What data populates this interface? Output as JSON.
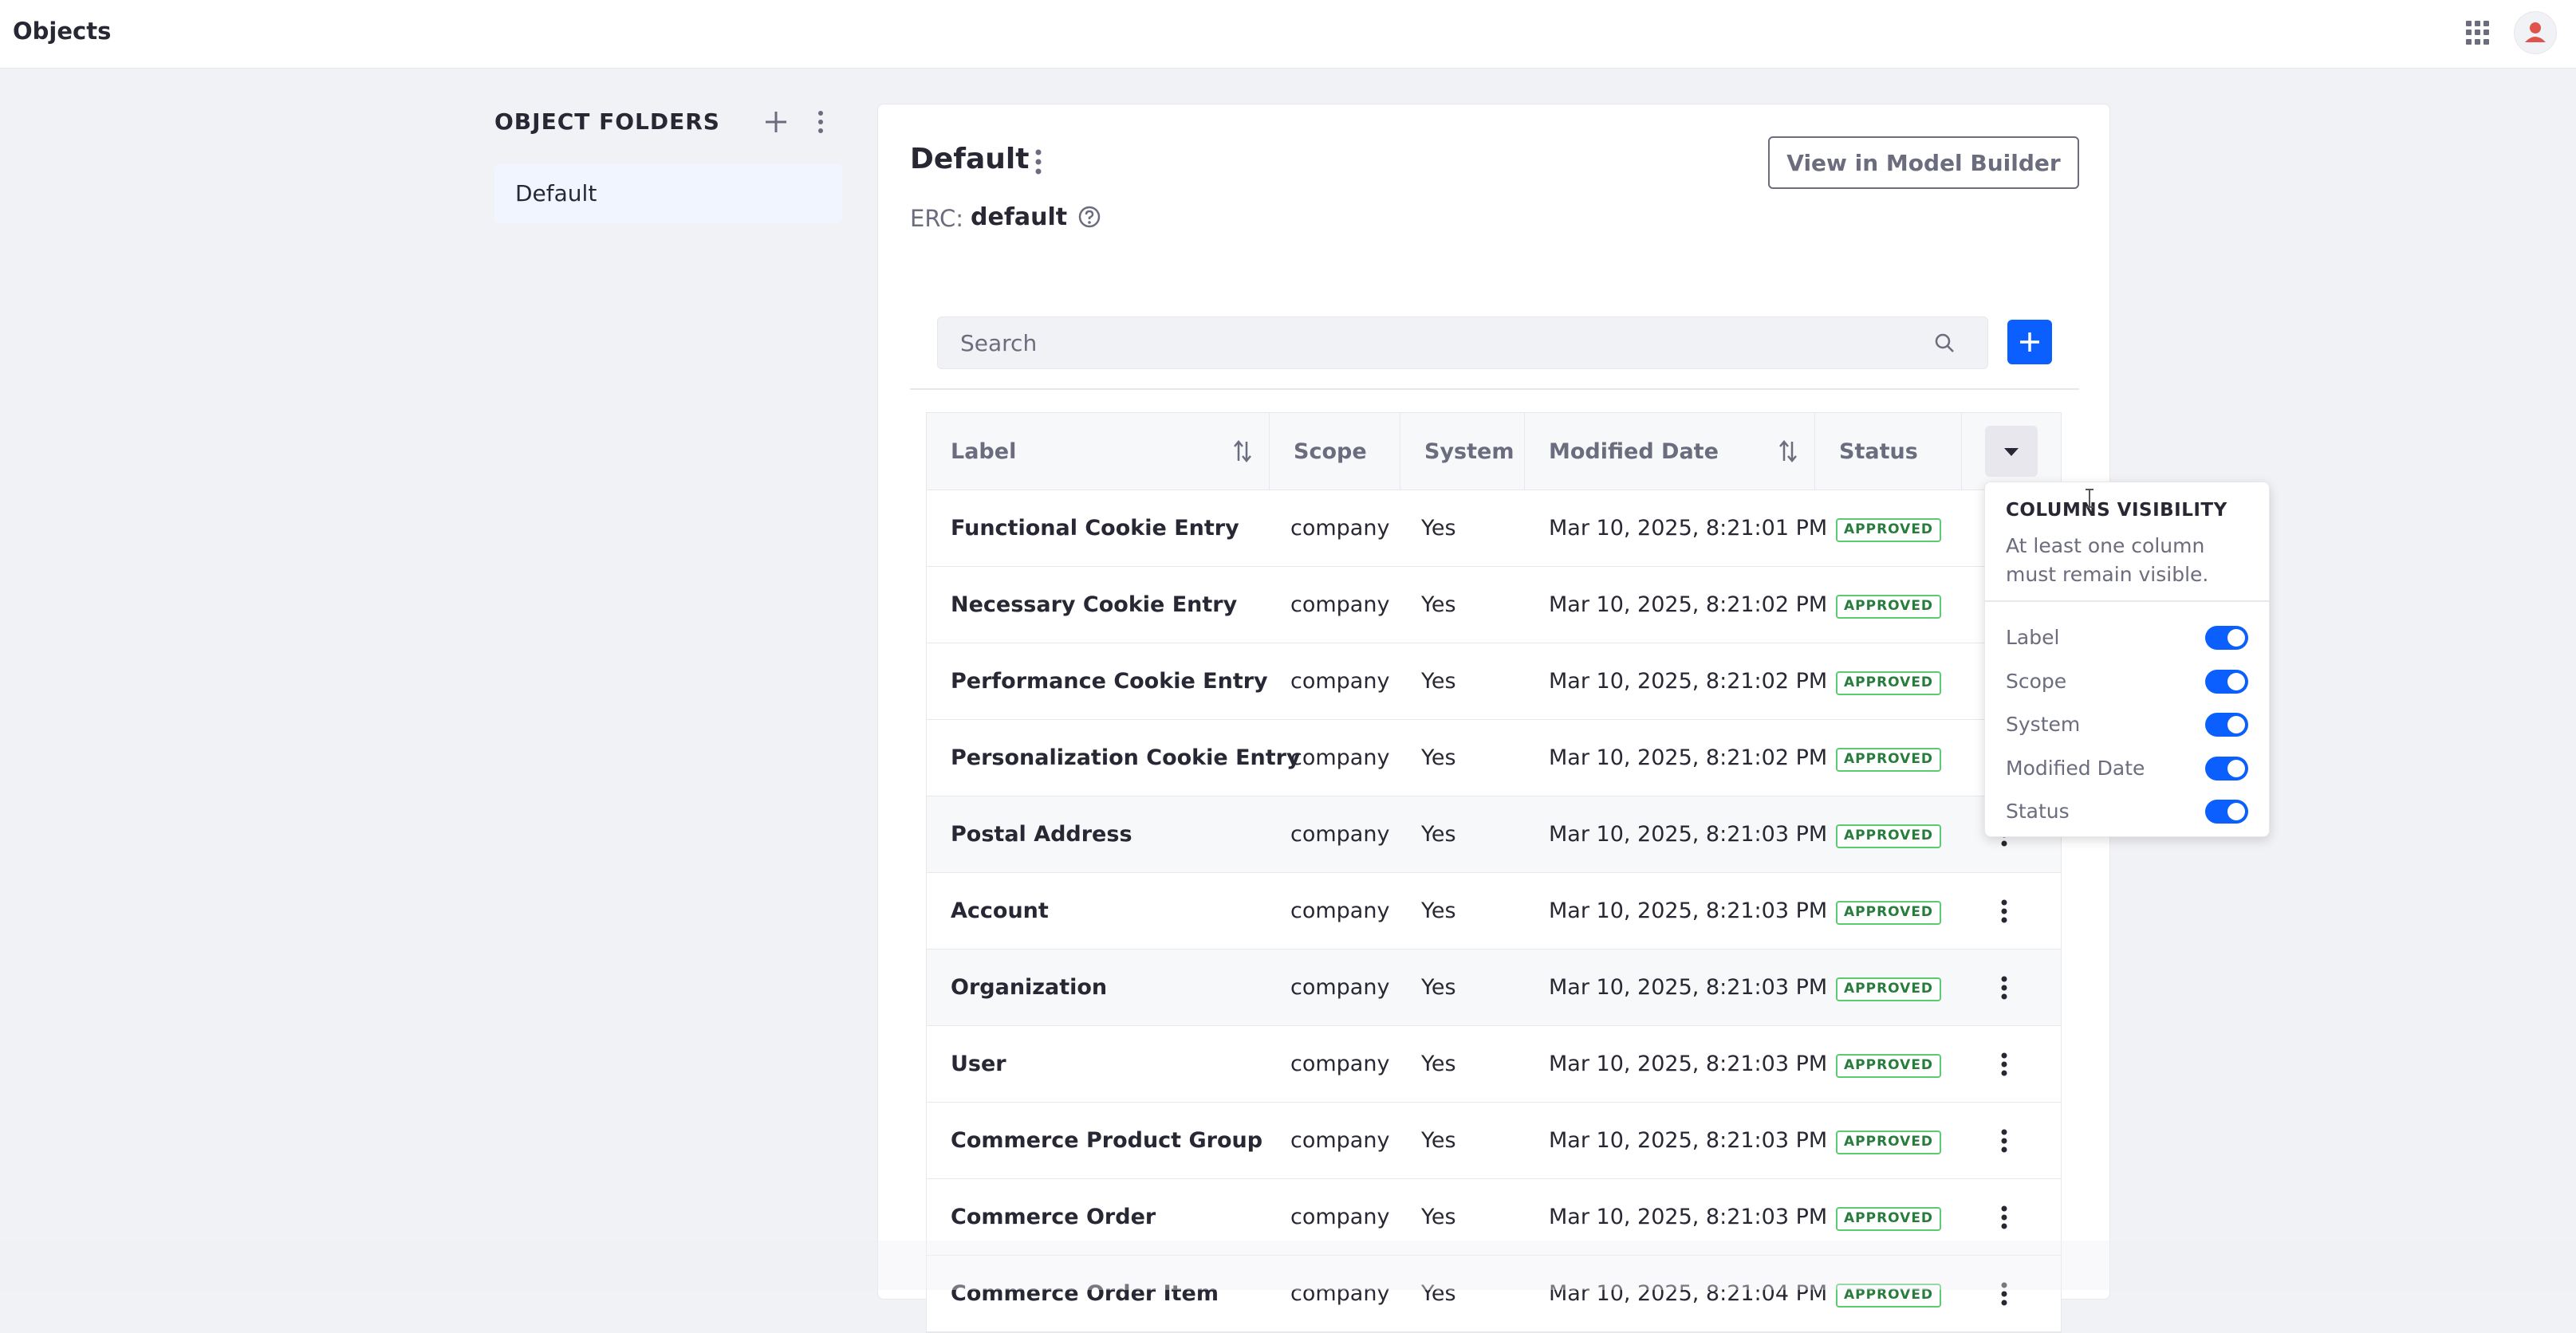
{
  "topbar": {
    "title": "Objects",
    "apps_icon": "apps-grid-icon",
    "avatar_icon": "user-icon"
  },
  "sidebar": {
    "title": "OBJECT FOLDERS",
    "add_icon": "plus-icon",
    "menu_icon": "kebab-icon",
    "folders": [
      {
        "label": "Default"
      }
    ]
  },
  "main": {
    "title": "Default",
    "erc_label": "ERC:",
    "erc_value": "default",
    "view_button": "View in Model Builder",
    "search_placeholder": "Search",
    "columns": {
      "label": "Label",
      "scope": "Scope",
      "system": "System",
      "modified_date": "Modified Date",
      "status": "Status"
    },
    "rows": [
      {
        "label": "Functional Cookie Entry",
        "scope": "company",
        "system": "Yes",
        "modified": "Mar 10, 2025, 8:21:01 PM",
        "status": "APPROVED"
      },
      {
        "label": "Necessary Cookie Entry",
        "scope": "company",
        "system": "Yes",
        "modified": "Mar 10, 2025, 8:21:02 PM",
        "status": "APPROVED"
      },
      {
        "label": "Performance Cookie Entry",
        "scope": "company",
        "system": "Yes",
        "modified": "Mar 10, 2025, 8:21:02 PM",
        "status": "APPROVED"
      },
      {
        "label": "Personalization Cookie Entry",
        "scope": "company",
        "system": "Yes",
        "modified": "Mar 10, 2025, 8:21:02 PM",
        "status": "APPROVED"
      },
      {
        "label": "Postal Address",
        "scope": "company",
        "system": "Yes",
        "modified": "Mar 10, 2025, 8:21:03 PM",
        "status": "APPROVED"
      },
      {
        "label": "Account",
        "scope": "company",
        "system": "Yes",
        "modified": "Mar 10, 2025, 8:21:03 PM",
        "status": "APPROVED"
      },
      {
        "label": "Organization",
        "scope": "company",
        "system": "Yes",
        "modified": "Mar 10, 2025, 8:21:03 PM",
        "status": "APPROVED"
      },
      {
        "label": "User",
        "scope": "company",
        "system": "Yes",
        "modified": "Mar 10, 2025, 8:21:03 PM",
        "status": "APPROVED"
      },
      {
        "label": "Commerce Product Group",
        "scope": "company",
        "system": "Yes",
        "modified": "Mar 10, 2025, 8:21:03 PM",
        "status": "APPROVED"
      },
      {
        "label": "Commerce Order",
        "scope": "company",
        "system": "Yes",
        "modified": "Mar 10, 2025, 8:21:03 PM",
        "status": "APPROVED"
      },
      {
        "label": "Commerce Order Item",
        "scope": "company",
        "system": "Yes",
        "modified": "Mar 10, 2025, 8:21:04 PM",
        "status": "APPROVED"
      }
    ]
  },
  "popover": {
    "title": "COLUMNS VISIBILITY",
    "description": "At least one column must remain visible.",
    "items": [
      {
        "label": "Label",
        "on": true
      },
      {
        "label": "Scope",
        "on": true
      },
      {
        "label": "System",
        "on": true
      },
      {
        "label": "Modified Date",
        "on": true
      },
      {
        "label": "Status",
        "on": true
      }
    ]
  },
  "colors": {
    "primary": "#0b5fff",
    "approved": "#287d3c",
    "approved_border": "#5aca75",
    "text": "#272833",
    "muted": "#6b6c7e"
  }
}
